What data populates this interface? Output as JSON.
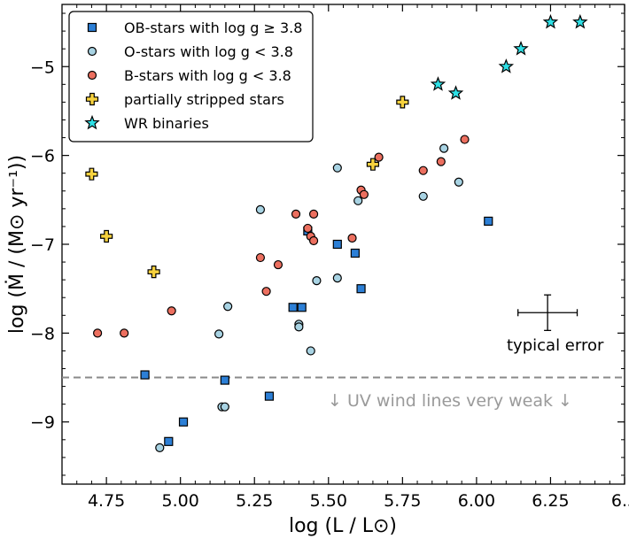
{
  "chart_data": {
    "type": "scatter",
    "xlabel": "log (L / L⊙)",
    "ylabel": "log (Ṁ / (M⊙ yr⁻¹))",
    "xlim": [
      4.6,
      6.5
    ],
    "ylim": [
      -9.7,
      -4.3
    ],
    "xticks": [
      4.75,
      5.0,
      5.25,
      5.5,
      5.75,
      6.0,
      6.25,
      6.5
    ],
    "xtick_labels": [
      "4.75",
      "5.00",
      "5.25",
      "5.50",
      "5.75",
      "6.00",
      "6.25",
      "6.5"
    ],
    "yticks": [
      -9,
      -8,
      -7,
      -6,
      -5
    ],
    "ytick_labels": [
      "−9",
      "−8",
      "−7",
      "−6",
      "−5"
    ],
    "legend_position": "top-left",
    "colors": {
      "ob": "#2c7fd6",
      "o": "#a8d3e3",
      "b": "#ec6f5f",
      "stripped": "#f7d23e",
      "wr": "#2ee0e6",
      "threshold": "#8a8a8a"
    },
    "series": [
      {
        "name": "OB-stars with log g ≥ 3.8",
        "marker": "square",
        "color_key": "ob",
        "points": [
          [
            4.88,
            -8.47
          ],
          [
            4.96,
            -9.22
          ],
          [
            5.01,
            -9.0
          ],
          [
            5.15,
            -8.53
          ],
          [
            5.3,
            -8.71
          ],
          [
            5.38,
            -7.71
          ],
          [
            5.41,
            -7.71
          ],
          [
            5.43,
            -6.85
          ],
          [
            5.53,
            -7.0
          ],
          [
            5.59,
            -7.1
          ],
          [
            5.61,
            -7.5
          ],
          [
            6.04,
            -6.74
          ]
        ]
      },
      {
        "name": "O-stars with log g < 3.8",
        "marker": "circle",
        "color_key": "o",
        "points": [
          [
            4.93,
            -9.29
          ],
          [
            5.13,
            -8.01
          ],
          [
            5.14,
            -8.83
          ],
          [
            5.15,
            -8.83
          ],
          [
            5.16,
            -7.7
          ],
          [
            5.27,
            -6.61
          ],
          [
            5.4,
            -7.9
          ],
          [
            5.4,
            -7.93
          ],
          [
            5.44,
            -8.2
          ],
          [
            5.46,
            -7.41
          ],
          [
            5.53,
            -6.14
          ],
          [
            5.53,
            -7.38
          ],
          [
            5.6,
            -6.51
          ],
          [
            5.82,
            -6.46
          ],
          [
            5.89,
            -5.92
          ],
          [
            5.94,
            -6.3
          ]
        ]
      },
      {
        "name": "B-stars with log g < 3.8",
        "marker": "circle",
        "color_key": "b",
        "points": [
          [
            4.72,
            -8.0
          ],
          [
            4.81,
            -8.0
          ],
          [
            4.97,
            -7.75
          ],
          [
            5.27,
            -7.15
          ],
          [
            5.29,
            -7.53
          ],
          [
            5.33,
            -7.23
          ],
          [
            5.39,
            -6.66
          ],
          [
            5.43,
            -6.82
          ],
          [
            5.44,
            -6.91
          ],
          [
            5.45,
            -6.96
          ],
          [
            5.45,
            -6.66
          ],
          [
            5.58,
            -6.93
          ],
          [
            5.61,
            -6.39
          ],
          [
            5.62,
            -6.44
          ],
          [
            5.67,
            -6.02
          ],
          [
            5.82,
            -6.17
          ],
          [
            5.88,
            -6.07
          ],
          [
            5.96,
            -5.82
          ]
        ]
      },
      {
        "name": "partially stripped stars",
        "marker": "plus",
        "color_key": "stripped",
        "points": [
          [
            4.7,
            -6.21
          ],
          [
            4.75,
            -6.91
          ],
          [
            4.91,
            -7.31
          ],
          [
            5.65,
            -6.1
          ],
          [
            5.75,
            -5.4
          ]
        ]
      },
      {
        "name": "WR binaries",
        "marker": "star",
        "color_key": "wr",
        "points": [
          [
            5.87,
            -5.2
          ],
          [
            5.93,
            -5.3
          ],
          [
            6.1,
            -5.0
          ],
          [
            6.15,
            -4.8
          ],
          [
            6.25,
            -4.5
          ],
          [
            6.35,
            -4.5
          ]
        ]
      }
    ],
    "threshold": {
      "y": -8.5,
      "label": "↓ UV wind lines very weak ↓"
    },
    "error_bar": {
      "x": 6.24,
      "y": -7.77,
      "dx": 0.1,
      "dy": 0.2,
      "label": "typical error"
    }
  }
}
